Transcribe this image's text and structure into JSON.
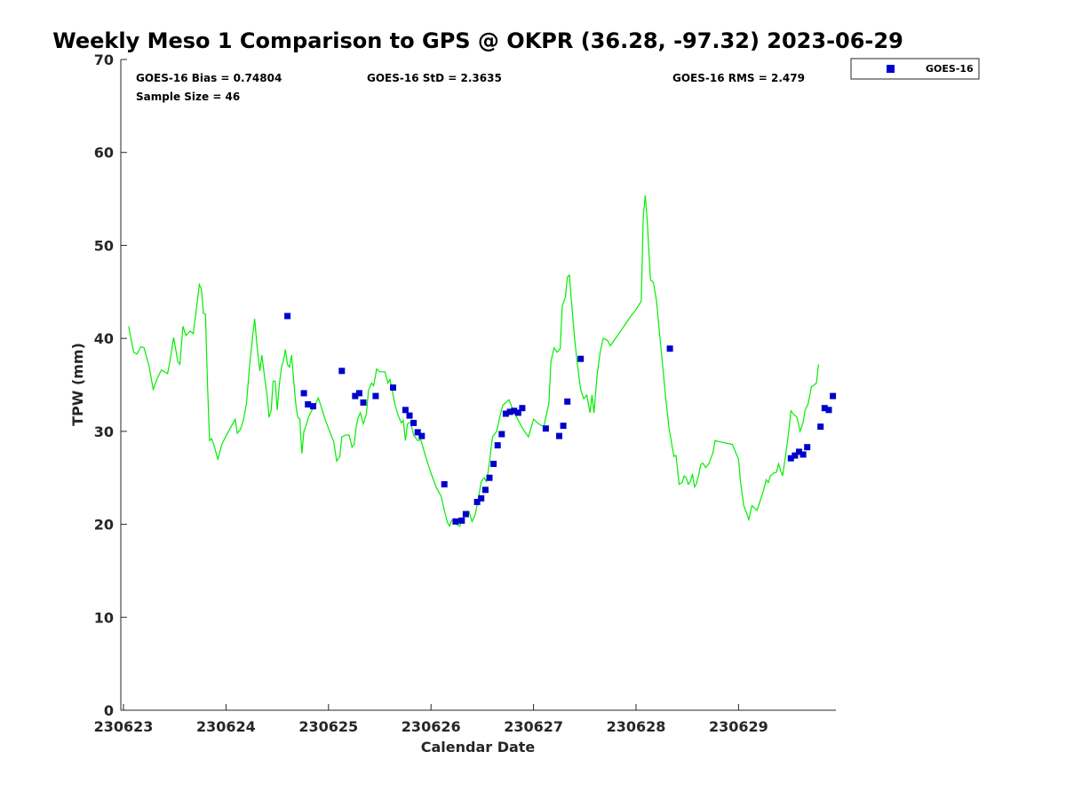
{
  "chart_data": {
    "type": "scatter",
    "title": "Weekly Meso 1 Comparison to GPS @ OKPR (36.28, -97.32) 2023-06-29",
    "xlabel": "Calendar Date",
    "ylabel": "TPW (mm)",
    "x_unit": "days (date + fraction of day)",
    "xlim": [
      0,
      6.95
    ],
    "ylim": [
      0,
      70
    ],
    "x_tick_labels": [
      "230623",
      "230624",
      "230625",
      "230626",
      "230627",
      "230628",
      "230629"
    ],
    "x_tick_values": [
      0,
      1,
      2,
      3,
      4,
      5,
      6
    ],
    "y_tick_values": [
      0,
      10,
      20,
      30,
      40,
      50,
      60,
      70
    ],
    "grid": false,
    "legend": {
      "position": "top-right-outside",
      "entries": [
        "GOES-16"
      ]
    },
    "stats": {
      "bias": "GOES-16 Bias = 0.74804",
      "std": "GOES-16 StD = 2.3635",
      "rms": "GOES-16 RMS = 2.479",
      "sample_size": "Sample Size = 46"
    },
    "colors": {
      "gps_line": "#00ee00",
      "goes_points": "#0000cc"
    },
    "series": [
      {
        "type": "line",
        "points": [
          [
            0.05,
            41.3
          ],
          [
            0.1,
            38.5
          ],
          [
            0.13,
            38.3
          ],
          [
            0.17,
            39.1
          ],
          [
            0.2,
            39.0
          ],
          [
            0.25,
            37.0
          ],
          [
            0.29,
            34.5
          ],
          [
            0.33,
            35.7
          ],
          [
            0.37,
            36.6
          ],
          [
            0.43,
            36.2
          ],
          [
            0.45,
            37.3
          ],
          [
            0.49,
            40.1
          ],
          [
            0.53,
            37.5
          ],
          [
            0.55,
            37.2
          ],
          [
            0.58,
            41.3
          ],
          [
            0.61,
            40.3
          ],
          [
            0.65,
            40.8
          ],
          [
            0.68,
            40.5
          ],
          [
            0.71,
            43.0
          ],
          [
            0.74,
            45.8
          ],
          [
            0.76,
            45.3
          ],
          [
            0.78,
            42.7
          ],
          [
            0.8,
            42.6
          ],
          [
            0.82,
            35.0
          ],
          [
            0.84,
            29.0
          ],
          [
            0.86,
            29.2
          ],
          [
            0.88,
            28.6
          ],
          [
            0.92,
            27.0
          ],
          [
            0.96,
            28.6
          ],
          [
            1.0,
            29.5
          ],
          [
            1.05,
            30.5
          ],
          [
            1.09,
            31.3
          ],
          [
            1.11,
            29.8
          ],
          [
            1.14,
            30.2
          ],
          [
            1.17,
            31.2
          ],
          [
            1.2,
            33.0
          ],
          [
            1.23,
            37.0
          ],
          [
            1.26,
            40.2
          ],
          [
            1.28,
            42.1
          ],
          [
            1.3,
            39.5
          ],
          [
            1.33,
            36.5
          ],
          [
            1.35,
            38.2
          ],
          [
            1.38,
            35.5
          ],
          [
            1.4,
            33.9
          ],
          [
            1.42,
            31.5
          ],
          [
            1.44,
            32.2
          ],
          [
            1.46,
            35.4
          ],
          [
            1.48,
            35.4
          ],
          [
            1.5,
            32.3
          ],
          [
            1.52,
            35.0
          ],
          [
            1.54,
            36.8
          ],
          [
            1.56,
            37.6
          ],
          [
            1.58,
            38.8
          ],
          [
            1.6,
            37.2
          ],
          [
            1.62,
            36.9
          ],
          [
            1.64,
            38.2
          ],
          [
            1.66,
            35.5
          ],
          [
            1.68,
            33.0
          ],
          [
            1.7,
            31.5
          ],
          [
            1.72,
            31.3
          ],
          [
            1.73,
            29.4
          ],
          [
            1.74,
            27.6
          ],
          [
            1.76,
            30.0
          ],
          [
            1.78,
            30.6
          ],
          [
            1.81,
            31.7
          ],
          [
            1.84,
            32.3
          ],
          [
            1.87,
            32.8
          ],
          [
            1.9,
            33.6
          ],
          [
            1.93,
            32.6
          ],
          [
            1.96,
            31.5
          ],
          [
            2.0,
            30.3
          ],
          [
            2.05,
            28.9
          ],
          [
            2.08,
            26.8
          ],
          [
            2.11,
            27.3
          ],
          [
            2.13,
            29.4
          ],
          [
            2.17,
            29.6
          ],
          [
            2.2,
            29.6
          ],
          [
            2.23,
            28.3
          ],
          [
            2.25,
            28.6
          ],
          [
            2.27,
            30.5
          ],
          [
            2.29,
            31.5
          ],
          [
            2.31,
            32.0
          ],
          [
            2.34,
            30.8
          ],
          [
            2.37,
            31.9
          ],
          [
            2.39,
            34.4
          ],
          [
            2.42,
            35.2
          ],
          [
            2.44,
            34.9
          ],
          [
            2.47,
            36.7
          ],
          [
            2.5,
            36.4
          ],
          [
            2.55,
            36.4
          ],
          [
            2.58,
            35.2
          ],
          [
            2.6,
            35.6
          ],
          [
            2.62,
            34.5
          ],
          [
            2.65,
            32.8
          ],
          [
            2.68,
            31.7
          ],
          [
            2.71,
            30.9
          ],
          [
            2.73,
            31.2
          ],
          [
            2.75,
            29.0
          ],
          [
            2.77,
            30.8
          ],
          [
            2.8,
            31.0
          ],
          [
            2.83,
            29.6
          ],
          [
            2.87,
            29.0
          ],
          [
            2.9,
            29.1
          ],
          [
            2.95,
            27.2
          ],
          [
            3.0,
            25.5
          ],
          [
            3.05,
            24.0
          ],
          [
            3.1,
            23.0
          ],
          [
            3.13,
            21.5
          ],
          [
            3.16,
            20.2
          ],
          [
            3.18,
            19.8
          ],
          [
            3.2,
            20.4
          ],
          [
            3.23,
            20.6
          ],
          [
            3.25,
            20.0
          ],
          [
            3.28,
            19.8
          ],
          [
            3.31,
            20.6
          ],
          [
            3.34,
            21.3
          ],
          [
            3.37,
            21.4
          ],
          [
            3.4,
            20.3
          ],
          [
            3.43,
            21.0
          ],
          [
            3.46,
            22.6
          ],
          [
            3.49,
            24.6
          ],
          [
            3.52,
            25.0
          ],
          [
            3.54,
            24.6
          ],
          [
            3.56,
            25.8
          ],
          [
            3.6,
            29.4
          ],
          [
            3.64,
            30.0
          ],
          [
            3.67,
            31.5
          ],
          [
            3.7,
            32.8
          ],
          [
            3.73,
            33.1
          ],
          [
            3.76,
            33.4
          ],
          [
            3.8,
            32.3
          ],
          [
            3.85,
            31.2
          ],
          [
            3.9,
            30.2
          ],
          [
            3.95,
            29.4
          ],
          [
            4.0,
            31.3
          ],
          [
            4.05,
            30.8
          ],
          [
            4.1,
            30.5
          ],
          [
            4.13,
            32.0
          ],
          [
            4.15,
            33.0
          ],
          [
            4.17,
            37.5
          ],
          [
            4.2,
            39.0
          ],
          [
            4.23,
            38.5
          ],
          [
            4.26,
            38.9
          ],
          [
            4.28,
            43.5
          ],
          [
            4.31,
            44.4
          ],
          [
            4.33,
            46.6
          ],
          [
            4.35,
            46.8
          ],
          [
            4.37,
            44.0
          ],
          [
            4.4,
            40.0
          ],
          [
            4.43,
            37.0
          ],
          [
            4.46,
            34.5
          ],
          [
            4.49,
            33.5
          ],
          [
            4.52,
            33.9
          ],
          [
            4.55,
            32.0
          ],
          [
            4.57,
            33.9
          ],
          [
            4.59,
            32.0
          ],
          [
            4.62,
            36.0
          ],
          [
            4.65,
            38.5
          ],
          [
            4.68,
            40.0
          ],
          [
            4.72,
            39.8
          ],
          [
            4.75,
            39.2
          ],
          [
            4.8,
            40.0
          ],
          [
            4.85,
            40.8
          ],
          [
            4.9,
            41.6
          ],
          [
            4.95,
            42.4
          ],
          [
            5.0,
            43.1
          ],
          [
            5.05,
            44.0
          ],
          [
            5.07,
            53.0
          ],
          [
            5.09,
            55.4
          ],
          [
            5.11,
            52.5
          ],
          [
            5.14,
            46.3
          ],
          [
            5.17,
            46.0
          ],
          [
            5.2,
            44.0
          ],
          [
            5.23,
            40.5
          ],
          [
            5.26,
            37.0
          ],
          [
            5.29,
            33.5
          ],
          [
            5.32,
            30.5
          ],
          [
            5.35,
            28.5
          ],
          [
            5.37,
            27.3
          ],
          [
            5.39,
            27.4
          ],
          [
            5.42,
            24.3
          ],
          [
            5.45,
            24.5
          ],
          [
            5.47,
            25.2
          ],
          [
            5.49,
            25.0
          ],
          [
            5.51,
            24.3
          ],
          [
            5.53,
            24.6
          ],
          [
            5.55,
            25.4
          ],
          [
            5.57,
            24.0
          ],
          [
            5.59,
            24.4
          ],
          [
            5.61,
            25.3
          ],
          [
            5.63,
            26.4
          ],
          [
            5.65,
            26.6
          ],
          [
            5.68,
            26.1
          ],
          [
            5.71,
            26.5
          ],
          [
            5.75,
            27.7
          ],
          [
            5.77,
            29.0
          ],
          [
            5.85,
            28.8
          ],
          [
            5.94,
            28.6
          ],
          [
            5.97,
            27.8
          ],
          [
            6.0,
            27.0
          ],
          [
            6.02,
            24.5
          ],
          [
            6.05,
            22.0
          ],
          [
            6.08,
            21.2
          ],
          [
            6.1,
            20.5
          ],
          [
            6.13,
            22.0
          ],
          [
            6.15,
            21.8
          ],
          [
            6.18,
            21.5
          ],
          [
            6.21,
            22.5
          ],
          [
            6.24,
            23.5
          ],
          [
            6.27,
            24.8
          ],
          [
            6.29,
            24.5
          ],
          [
            6.31,
            25.2
          ],
          [
            6.34,
            25.5
          ],
          [
            6.37,
            25.6
          ],
          [
            6.39,
            26.5
          ],
          [
            6.41,
            25.8
          ],
          [
            6.43,
            25.2
          ],
          [
            6.46,
            27.5
          ],
          [
            6.49,
            30.0
          ],
          [
            6.51,
            32.2
          ],
          [
            6.54,
            31.8
          ],
          [
            6.57,
            31.5
          ],
          [
            6.6,
            30.0
          ],
          [
            6.63,
            31.0
          ],
          [
            6.65,
            32.3
          ],
          [
            6.68,
            33.0
          ],
          [
            6.71,
            34.8
          ],
          [
            6.74,
            35.0
          ],
          [
            6.76,
            35.2
          ],
          [
            6.78,
            37.2
          ]
        ]
      },
      {
        "name": "GOES-16",
        "type": "scatter",
        "points": [
          [
            1.6,
            42.4
          ],
          [
            1.76,
            34.1
          ],
          [
            1.8,
            32.9
          ],
          [
            1.85,
            32.7
          ],
          [
            2.13,
            36.5
          ],
          [
            2.26,
            33.8
          ],
          [
            2.3,
            34.1
          ],
          [
            2.34,
            33.1
          ],
          [
            2.46,
            33.8
          ],
          [
            2.63,
            34.7
          ],
          [
            2.75,
            32.3
          ],
          [
            2.79,
            31.7
          ],
          [
            2.83,
            30.9
          ],
          [
            2.87,
            29.9
          ],
          [
            2.91,
            29.5
          ],
          [
            3.13,
            24.3
          ],
          [
            3.24,
            20.3
          ],
          [
            3.3,
            20.4
          ],
          [
            3.34,
            21.1
          ],
          [
            3.45,
            22.4
          ],
          [
            3.49,
            22.8
          ],
          [
            3.53,
            23.7
          ],
          [
            3.57,
            25.0
          ],
          [
            3.61,
            26.5
          ],
          [
            3.65,
            28.5
          ],
          [
            3.69,
            29.7
          ],
          [
            3.73,
            31.9
          ],
          [
            3.77,
            32.1
          ],
          [
            3.81,
            32.2
          ],
          [
            3.85,
            32.0
          ],
          [
            3.89,
            32.5
          ],
          [
            4.12,
            30.3
          ],
          [
            4.25,
            29.5
          ],
          [
            4.29,
            30.6
          ],
          [
            4.33,
            33.2
          ],
          [
            4.46,
            37.8
          ],
          [
            5.33,
            38.9
          ],
          [
            6.51,
            27.1
          ],
          [
            6.55,
            27.4
          ],
          [
            6.59,
            27.8
          ],
          [
            6.63,
            27.5
          ],
          [
            6.67,
            28.3
          ],
          [
            6.8,
            30.5
          ],
          [
            6.84,
            32.5
          ],
          [
            6.88,
            32.3
          ],
          [
            6.92,
            33.8
          ]
        ]
      }
    ]
  }
}
